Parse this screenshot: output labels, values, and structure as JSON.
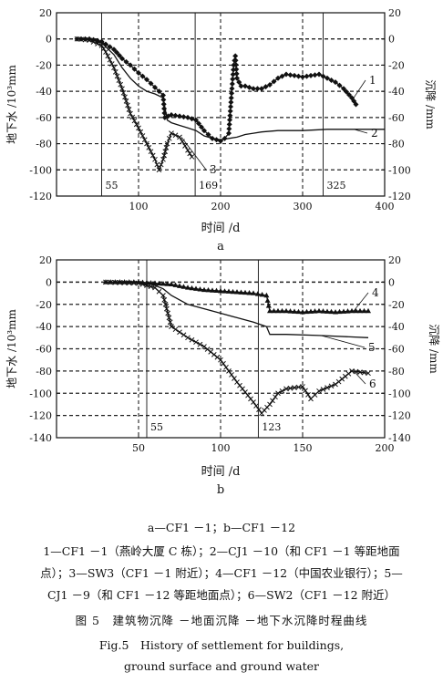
{
  "chart_data": [
    {
      "panel_label": "a",
      "type": "line",
      "xlabel": "时间 /d",
      "ylabel_left": "地下水 /10³mm",
      "ylabel_right": "沉降 /mm",
      "xlim": [
        0,
        400
      ],
      "xticks": [
        "100",
        "200",
        "300",
        "400"
      ],
      "ylim_left": [
        -120,
        20
      ],
      "yticks_left": [
        "20",
        "0",
        "-20",
        "-40",
        "-60",
        "-80",
        "-100",
        "-120"
      ],
      "ylim_right": [
        -120,
        20
      ],
      "yticks_right": [
        "20",
        "0",
        "-20",
        "-40",
        "-60",
        "-80",
        "-100",
        "-120"
      ],
      "vlines": [
        {
          "x": 55,
          "label": "55"
        },
        {
          "x": 169,
          "label": "169"
        },
        {
          "x": 325,
          "label": "325"
        }
      ],
      "series": [
        {
          "name": "1",
          "marker": "diamond",
          "x": [
            25,
            40,
            55,
            70,
            80,
            90,
            100,
            110,
            120,
            130,
            132,
            140,
            150,
            160,
            170,
            180,
            190,
            200,
            205,
            210,
            213,
            216,
            218,
            220,
            225,
            230,
            240,
            250,
            260,
            270,
            280,
            290,
            300,
            310,
            320,
            330,
            340,
            350,
            360,
            365
          ],
          "y": [
            0,
            0,
            -2,
            -8,
            -15,
            -20,
            -26,
            -31,
            -37,
            -43,
            -60,
            -58,
            -59,
            -60,
            -62,
            -70,
            -76,
            -78,
            -76,
            -72,
            -45,
            -20,
            -13,
            -30,
            -36,
            -36,
            -38,
            -38,
            -35,
            -30,
            -27,
            -28,
            -29,
            -28,
            -27,
            -30,
            -33,
            -38,
            -45,
            -50
          ]
        },
        {
          "name": "2",
          "marker": "none",
          "x": [
            25,
            40,
            55,
            70,
            80,
            90,
            100,
            110,
            120,
            130,
            135,
            140,
            150,
            160,
            170,
            180,
            190,
            200,
            210,
            220,
            230,
            240,
            250,
            270,
            300,
            330,
            360,
            400
          ],
          "y": [
            0,
            0,
            -3,
            -12,
            -22,
            -30,
            -36,
            -40,
            -42,
            -45,
            -62,
            -64,
            -66,
            -68,
            -70,
            -74,
            -76,
            -77,
            -76,
            -75,
            -73,
            -72,
            -71,
            -70,
            -70,
            -69,
            -69,
            -69
          ]
        },
        {
          "name": "3",
          "marker": "cross",
          "x": [
            25,
            40,
            55,
            60,
            70,
            80,
            90,
            100,
            110,
            120,
            125,
            130,
            135,
            140,
            150,
            160,
            165
          ],
          "y": [
            0,
            -1,
            -5,
            -10,
            -22,
            -38,
            -57,
            -68,
            -80,
            -92,
            -100,
            -92,
            -80,
            -72,
            -75,
            -85,
            -90
          ]
        }
      ],
      "legend_labels": [
        {
          "text": "1",
          "series": "1"
        },
        {
          "text": "2",
          "series": "2"
        },
        {
          "text": "3",
          "series": "3"
        }
      ]
    },
    {
      "panel_label": "b",
      "type": "line",
      "xlabel": "时间 /d",
      "ylabel_left": "地下水 /10³mm",
      "ylabel_right": "沉降 /mm",
      "xlim": [
        0,
        200
      ],
      "xticks": [
        "50",
        "100",
        "150",
        "200"
      ],
      "ylim_left": [
        -140,
        20
      ],
      "yticks_left": [
        "20",
        "0",
        "-20",
        "-40",
        "-60",
        "-80",
        "-100",
        "-120",
        "-140"
      ],
      "ylim_right": [
        -140,
        20
      ],
      "yticks_right": [
        "20",
        "0",
        "-20",
        "-40",
        "-60",
        "-80",
        "-100",
        "-120",
        "-140"
      ],
      "vlines": [
        {
          "x": 55,
          "label": "55"
        },
        {
          "x": 123,
          "label": "123"
        }
      ],
      "series": [
        {
          "name": "4",
          "marker": "triangle",
          "x": [
            30,
            50,
            60,
            70,
            80,
            90,
            100,
            110,
            120,
            128,
            130,
            140,
            150,
            160,
            170,
            180,
            190
          ],
          "y": [
            0,
            0,
            -1,
            -2,
            -5,
            -7,
            -8,
            -9,
            -10,
            -12,
            -26,
            -26,
            -27,
            -26,
            -27,
            -26,
            -26
          ]
        },
        {
          "name": "5",
          "marker": "none",
          "x": [
            30,
            50,
            55,
            60,
            65,
            70,
            80,
            90,
            100,
            110,
            120,
            128,
            130,
            140,
            160,
            190
          ],
          "y": [
            0,
            0,
            -1,
            -3,
            -6,
            -12,
            -20,
            -24,
            -28,
            -32,
            -36,
            -40,
            -47,
            -47,
            -48,
            -50
          ]
        },
        {
          "name": "6",
          "marker": "cross",
          "x": [
            30,
            50,
            60,
            65,
            70,
            80,
            90,
            100,
            110,
            120,
            125,
            130,
            135,
            140,
            150,
            155,
            160,
            170,
            180,
            190
          ],
          "y": [
            0,
            -1,
            -5,
            -12,
            -40,
            -50,
            -58,
            -70,
            -90,
            -108,
            -118,
            -110,
            -100,
            -96,
            -94,
            -105,
            -98,
            -92,
            -80,
            -82
          ]
        }
      ],
      "legend_labels": [
        {
          "text": "4",
          "series": "4"
        },
        {
          "text": "5",
          "series": "5"
        },
        {
          "text": "6",
          "series": "6"
        }
      ]
    }
  ],
  "captions": {
    "sub": "a—CF1 －1；b—CF1 －12",
    "legend_line1": "1—CF1 －1（燕岭大厦 C 栋）；2—CJ1 －10（和 CF1 －1 等距地面",
    "legend_line2": "点）；3—SW3（CF1 －1 附近）；4—CF1 －12（中国农业银行）；5—",
    "legend_line3": "CJ1 －9（和 CF1 －12 等距地面点）；6—SW2（CF1 －12 附近）",
    "fig_cn": "图 5　建筑物沉降 －地面沉降 －地下水沉降时程曲线",
    "fig_en1": "Fig.5　History of settlement for buildings,",
    "fig_en2": "ground surface and ground water"
  }
}
